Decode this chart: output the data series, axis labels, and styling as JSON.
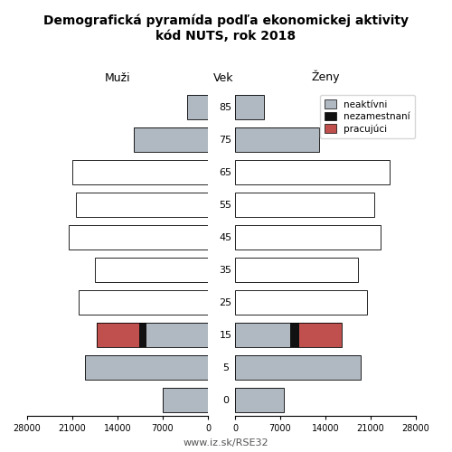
{
  "title_line1": "Demografická pyramída podľa ekonomickej aktivity",
  "title_line2": "kód NUTS, rok 2018",
  "age_labels": [
    "0",
    "5",
    "15",
    "25",
    "35",
    "45",
    "55",
    "65",
    "75",
    "85"
  ],
  "males": {
    "neaktivni": [
      7000,
      19000,
      9500,
      0,
      0,
      0,
      0,
      0,
      11500,
      3200
    ],
    "nezamestnani": [
      0,
      0,
      1200,
      0,
      0,
      0,
      0,
      0,
      0,
      0
    ],
    "pracujuci": [
      0,
      0,
      6500,
      0,
      0,
      0,
      0,
      0,
      0,
      0
    ],
    "pracujuci_outline": [
      0,
      0,
      0,
      20000,
      17500,
      21500,
      20500,
      21000,
      0,
      0
    ]
  },
  "females": {
    "neaktivni": [
      7500,
      19500,
      8500,
      0,
      0,
      0,
      0,
      0,
      13000,
      4500
    ],
    "nezamestnani": [
      0,
      0,
      1500,
      0,
      0,
      0,
      0,
      0,
      0,
      0
    ],
    "pracujuci": [
      0,
      0,
      6500,
      0,
      0,
      0,
      0,
      0,
      0,
      0
    ],
    "pracujuci_outline": [
      0,
      0,
      0,
      20500,
      19000,
      22500,
      21500,
      24000,
      0,
      0
    ]
  },
  "color_neaktivni": "#b0b8c1",
  "color_nezamestnani": "#111111",
  "color_pracujuci": "#c0504d",
  "color_outline_bar": "#ffffff",
  "xlim": 28000,
  "xlabel_left": "Muži",
  "xlabel_center": "Vek",
  "xlabel_right": "Ženy",
  "footer": "www.iz.sk/RSE32",
  "legend_labels": [
    "neaktívni",
    "nezamestnaní",
    "pracujúci"
  ]
}
